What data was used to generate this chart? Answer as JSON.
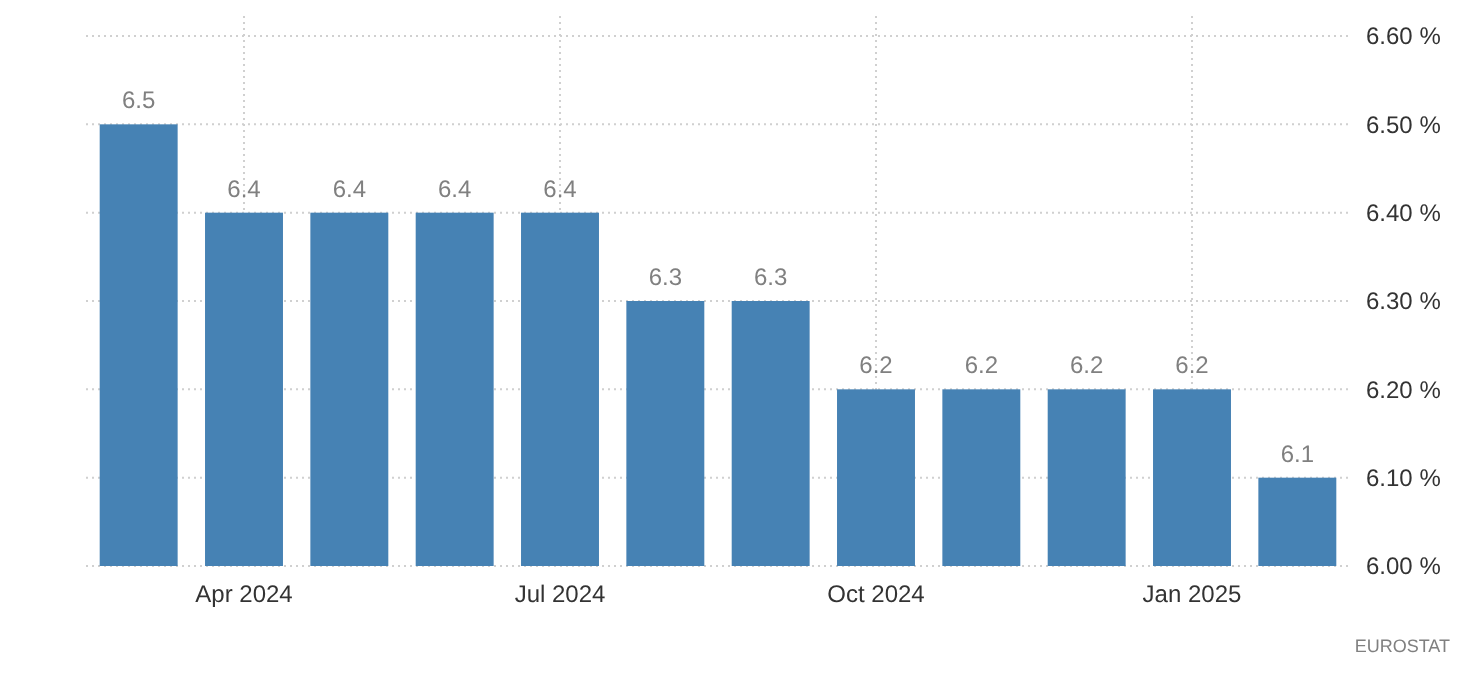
{
  "chart_data": {
    "type": "bar",
    "categories": [
      null,
      "Apr 2024",
      null,
      null,
      "Jul 2024",
      null,
      null,
      "Oct 2024",
      null,
      null,
      "Jan 2025",
      null
    ],
    "values": [
      6.5,
      6.4,
      6.4,
      6.4,
      6.4,
      6.3,
      6.3,
      6.2,
      6.2,
      6.2,
      6.2,
      6.1
    ],
    "color": "#4682b4",
    "ylim": [
      6.0,
      6.6
    ],
    "yticks": [
      {
        "value": 6.0,
        "label": "6.00 %"
      },
      {
        "value": 6.1,
        "label": "6.10 %"
      },
      {
        "value": 6.2,
        "label": "6.20 %"
      },
      {
        "value": 6.3,
        "label": "6.30 %"
      },
      {
        "value": 6.4,
        "label": "6.40 %"
      },
      {
        "value": 6.5,
        "label": "6.50 %"
      },
      {
        "value": 6.6,
        "label": "6.60 %"
      }
    ],
    "grid": true,
    "data_labels": true,
    "annotations": [
      "EUROSTAT"
    ]
  }
}
